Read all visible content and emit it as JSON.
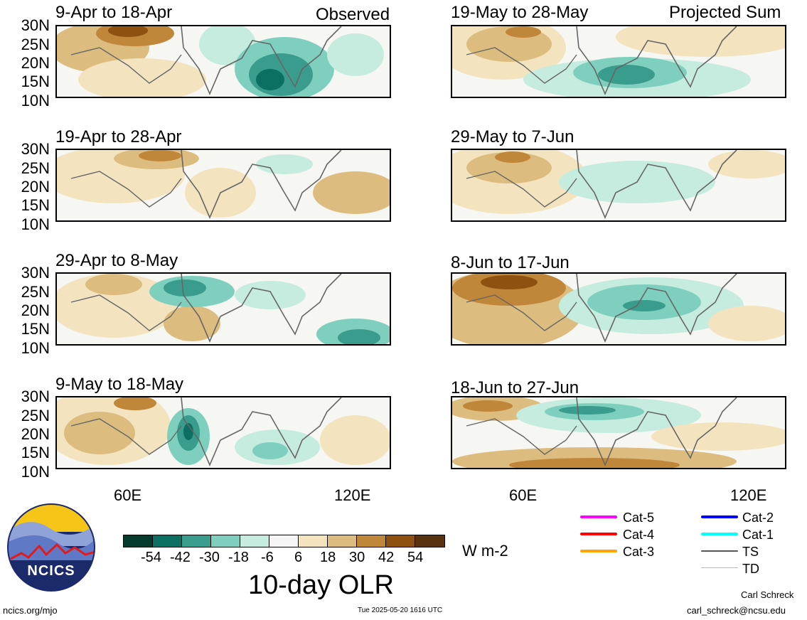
{
  "panels": [
    {
      "title": "9-Apr to 18-Apr",
      "label": "Observed"
    },
    {
      "title": "19-May to 28-May",
      "label": "Projected Sum"
    },
    {
      "title": "19-Apr to 28-Apr",
      "label": ""
    },
    {
      "title": "29-May to 7-Jun",
      "label": ""
    },
    {
      "title": "29-Apr to 8-May",
      "label": ""
    },
    {
      "title": "8-Jun to 17-Jun",
      "label": ""
    },
    {
      "title": "9-May to 18-May",
      "label": ""
    },
    {
      "title": "18-Jun to 27-Jun",
      "label": ""
    }
  ],
  "lat_labels": [
    "30N",
    "25N",
    "20N",
    "15N",
    "10N"
  ],
  "lon_labels": [
    "60E",
    "120E"
  ],
  "colorbar": {
    "colors": [
      "#053b2f",
      "#0b6f61",
      "#3a9c8c",
      "#7fcfbf",
      "#c5ecdf",
      "#f5f5f5",
      "#f3e4bf",
      "#ddbd7f",
      "#c0863a",
      "#8f510f",
      "#5a3210"
    ],
    "ticks": [
      "-54",
      "-42",
      "-30",
      "-18",
      "-6",
      "6",
      "18",
      "30",
      "42",
      "54"
    ],
    "units": "W m-2",
    "title": "10-day OLR"
  },
  "legend": [
    {
      "label": "Cat-5",
      "color": "#ff00ff"
    },
    {
      "label": "Cat-4",
      "color": "#ff0000"
    },
    {
      "label": "Cat-3",
      "color": "#ffa500"
    },
    {
      "label": "Cat-2",
      "color": "#0000ff"
    },
    {
      "label": "Cat-1",
      "color": "#00ffff"
    },
    {
      "label": "TS",
      "color": "#555555"
    },
    {
      "label": "TD",
      "color": "#bbbbbb"
    }
  ],
  "logo_text": "NCICS",
  "footer": {
    "left": "ncics.org/mjo",
    "center": "Tue 2025-05-20 1616 UTC",
    "author": "Carl Schreck",
    "email": "carl_schreck@ncsu.edu"
  }
}
